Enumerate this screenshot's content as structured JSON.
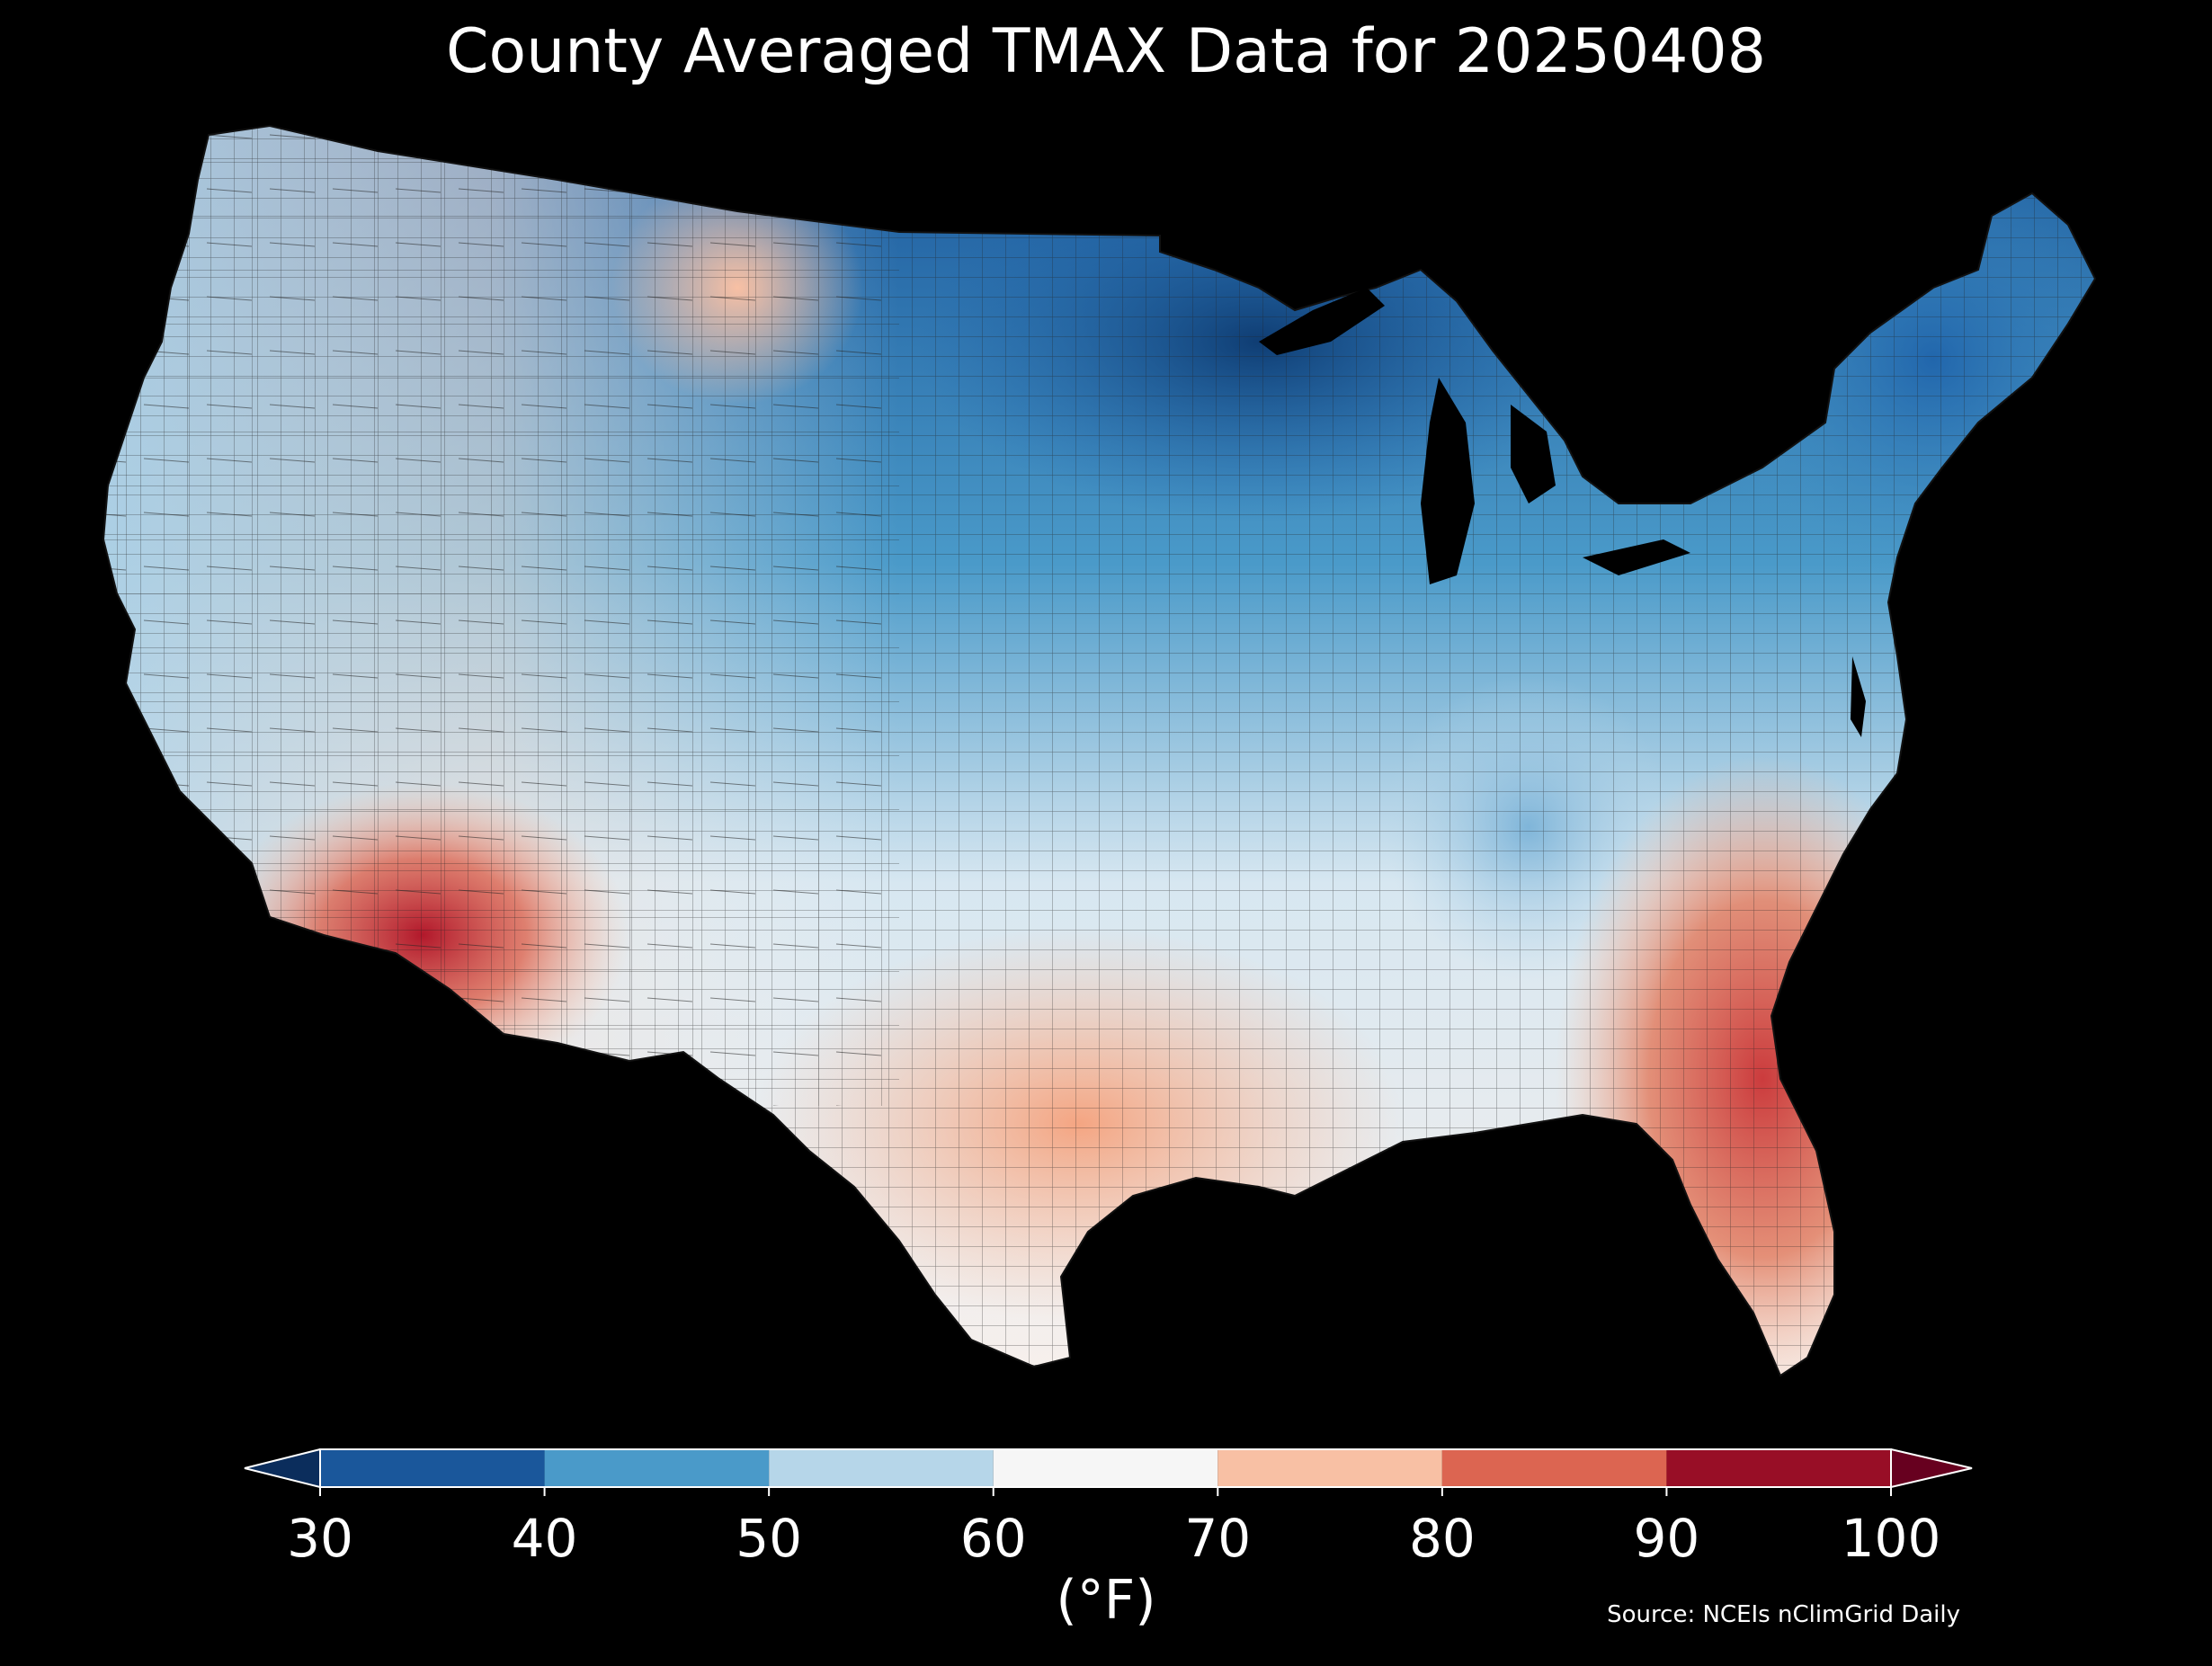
{
  "title": "County Averaged TMAX Data for 20250408",
  "colorbar": {
    "unit": "(°F)",
    "ticks": [
      "30",
      "40",
      "50",
      "60",
      "70",
      "80",
      "90",
      "100"
    ],
    "bins": [
      {
        "from": 30,
        "to": 40,
        "color": "#1a579b"
      },
      {
        "from": 40,
        "to": 50,
        "color": "#4a9ac9"
      },
      {
        "from": 50,
        "to": 60,
        "color": "#b6d6e9"
      },
      {
        "from": 60,
        "to": 70,
        "color": "#f6f6f6"
      },
      {
        "from": 70,
        "to": 80,
        "color": "#f8c0a4"
      },
      {
        "from": 80,
        "to": 90,
        "color": "#dc6551"
      },
      {
        "from": 90,
        "to": 100,
        "color": "#980e26"
      }
    ],
    "under_color": "#0b2d5c",
    "over_color": "#67001f"
  },
  "source": "Source: NCEIs nClimGrid Daily",
  "palette": {
    "background": "#000000",
    "text": "#ffffff",
    "county_border": "#222222"
  }
}
